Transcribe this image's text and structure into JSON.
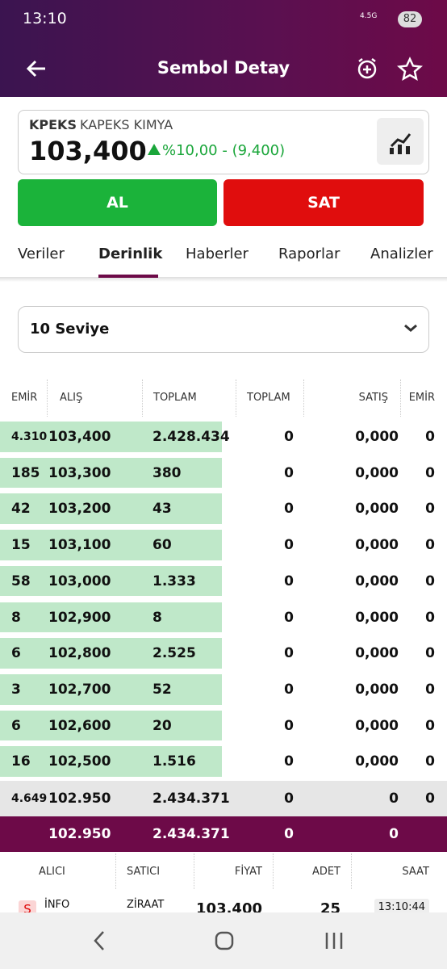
{
  "status_bar": {
    "time": "13:10",
    "network": "4.5G",
    "battery": "82"
  },
  "header": {
    "title": "Sembol Detay"
  },
  "symbol": {
    "code": "KPEKS",
    "name": "KAPEKS KIMYA",
    "price": "103,400",
    "change": "%10,00 - (9,400)"
  },
  "actions": {
    "buy": "AL",
    "sell": "SAT"
  },
  "tabs": {
    "items": [
      "Veriler",
      "Derinlik",
      "Haberler",
      "Raporlar",
      "Analizler"
    ],
    "active": 1
  },
  "level_select": "10 Seviye",
  "depth": {
    "headers": [
      "EMİR",
      "ALIŞ",
      "TOPLAM",
      "TOPLAM",
      "SATIŞ",
      "EMİR"
    ],
    "rows": [
      [
        "4.310",
        "103,400",
        "2.428.434",
        "0",
        "0,000",
        "0"
      ],
      [
        "185",
        "103,300",
        "380",
        "0",
        "0,000",
        "0"
      ],
      [
        "42",
        "103,200",
        "43",
        "0",
        "0,000",
        "0"
      ],
      [
        "15",
        "103,100",
        "60",
        "0",
        "0,000",
        "0"
      ],
      [
        "58",
        "103,000",
        "1.333",
        "0",
        "0,000",
        "0"
      ],
      [
        "8",
        "102,900",
        "8",
        "0",
        "0,000",
        "0"
      ],
      [
        "6",
        "102,800",
        "2.525",
        "0",
        "0,000",
        "0"
      ],
      [
        "3",
        "102,700",
        "52",
        "0",
        "0,000",
        "0"
      ],
      [
        "6",
        "102,600",
        "20",
        "0",
        "0,000",
        "0"
      ],
      [
        "16",
        "102,500",
        "1.516",
        "0",
        "0,000",
        "0"
      ]
    ],
    "summary": [
      "4.649",
      "102.950",
      "2.434.371",
      "0",
      "0",
      "0"
    ],
    "total": {
      "price": "102.950",
      "bid_total": "2.434.371",
      "ask_total": "0",
      "ask_price": "0"
    }
  },
  "trades": {
    "headers": [
      "ALICI",
      "SATICI",
      "FİYAT",
      "ADET",
      "SAAT"
    ],
    "rows": [
      {
        "side": "S",
        "buyer": "İNFO",
        "seller": "ZİRAAT",
        "price": "103,400",
        "qty": "25",
        "time": "13:10:44"
      }
    ]
  }
}
